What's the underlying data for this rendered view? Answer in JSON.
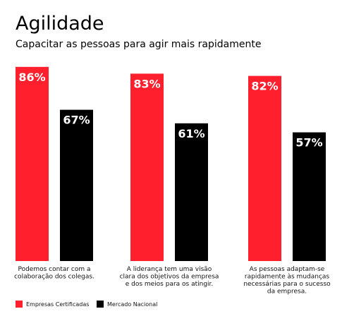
{
  "chart_data": {
    "type": "bar",
    "title": "Agilidade",
    "subtitle": "Capacitar as pessoas para agir mais rapidamente",
    "categories": [
      [
        "Podemos contar com a",
        "colaboração dos colegas."
      ],
      [
        "A liderança tem uma visão",
        "clara dos objetivos da empresa",
        "e dos meios para os atingir."
      ],
      [
        "As pessoas adaptam-se",
        "rapidamente às mudanças",
        "necessárias para o sucesso",
        "da empresa."
      ]
    ],
    "series": [
      {
        "name": "Empresas Certificadas",
        "color": "#ff1f2d",
        "values": [
          86,
          83,
          82
        ],
        "value_labels": [
          "86%",
          "83%",
          "82%"
        ]
      },
      {
        "name": "Mercado Nacional",
        "color": "#000000",
        "values": [
          67,
          61,
          57
        ],
        "value_labels": [
          "67%",
          "61%",
          "57%"
        ]
      }
    ]
  }
}
